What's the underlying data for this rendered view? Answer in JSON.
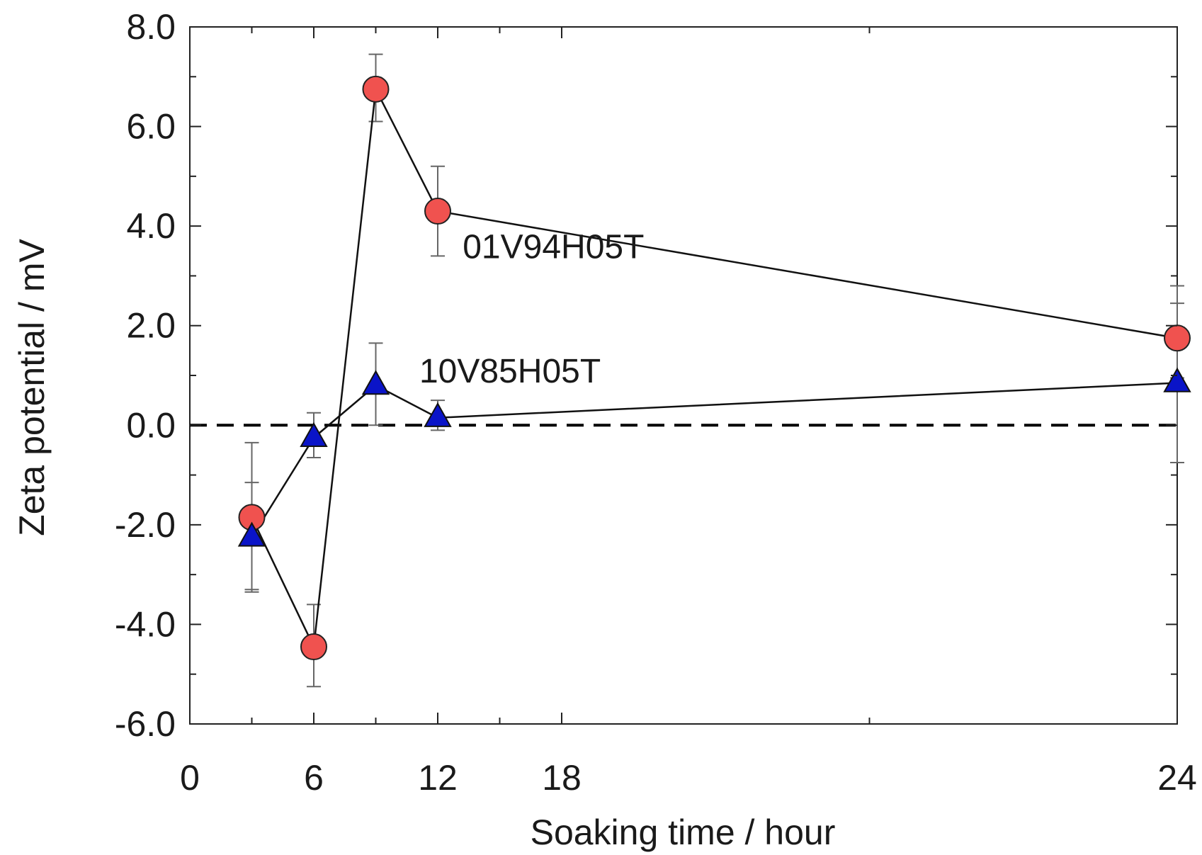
{
  "chart_data": {
    "type": "line",
    "title": "",
    "xlabel": "Soaking time / hour",
    "ylabel": "Zeta potential / mV",
    "xlim": [
      0,
      24
    ],
    "ylim": [
      -6.0,
      8.0
    ],
    "x_scale": "piecewise: 0-18 linear, 24 placed at the right end",
    "x_ticks": [
      0,
      6,
      12,
      18,
      24
    ],
    "x_tick_labels": [
      "0",
      "6",
      "12",
      "18",
      "24"
    ],
    "x_minor_ticks": [
      3,
      9,
      15,
      21
    ],
    "y_ticks": [
      -6.0,
      -4.0,
      -2.0,
      0.0,
      2.0,
      4.0,
      6.0,
      8.0
    ],
    "y_tick_labels": [
      "-6.0",
      "-4.0",
      "-2.0",
      "0.0",
      "2.0",
      "4.0",
      "6.0",
      "8.0"
    ],
    "grid": false,
    "reference_line": {
      "y": 0.0,
      "style": "dashed",
      "color": "#000000"
    },
    "series": [
      {
        "name": "01V94H05T",
        "marker": "circle",
        "color": "#f0524f",
        "x": [
          3,
          6,
          9,
          12,
          24
        ],
        "y": [
          -1.85,
          -4.45,
          6.75,
          4.3,
          1.75
        ],
        "err_low": [
          -3.35,
          -5.25,
          6.1,
          3.4,
          0.95
        ],
        "err_high": [
          -0.35,
          -3.6,
          7.45,
          5.2,
          2.8
        ]
      },
      {
        "name": "10V85H05T",
        "marker": "triangle",
        "color": "#0a14c8",
        "x": [
          3,
          6,
          9,
          12,
          24
        ],
        "y": [
          -2.25,
          -0.25,
          0.8,
          0.15,
          0.85
        ],
        "err_low": [
          -3.3,
          -0.65,
          0.0,
          -0.1,
          -0.75
        ],
        "err_high": [
          -1.15,
          0.25,
          1.65,
          0.5,
          2.45
        ]
      }
    ],
    "annotations": [
      {
        "text": "01V94H05T",
        "x": 17.6,
        "y": 3.6
      },
      {
        "text": "10V85H05T",
        "x": 15.5,
        "y": 1.1
      }
    ]
  }
}
